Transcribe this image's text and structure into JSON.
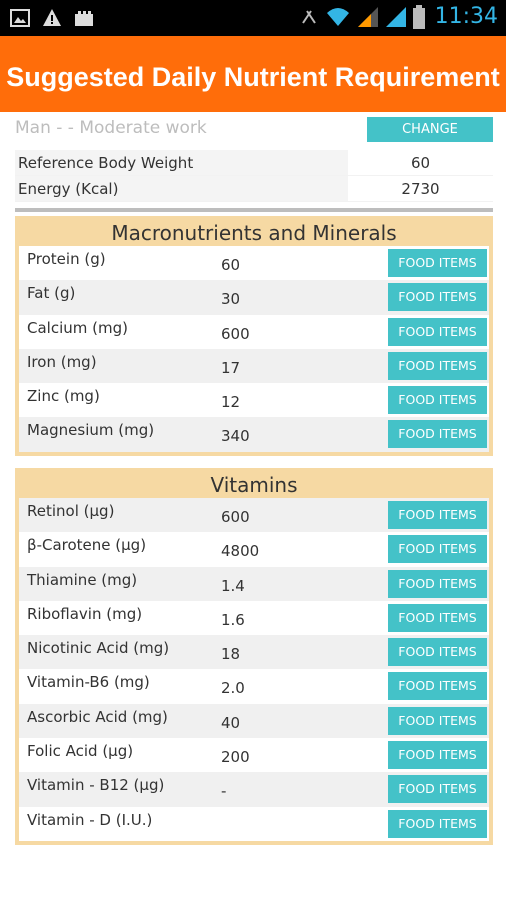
{
  "status_bar": {
    "time": "11:34",
    "left_icons": [
      "image-icon",
      "warning-icon",
      "gift-icon"
    ],
    "right_icons": [
      "no-sync-icon",
      "wifi-icon",
      "signal-icon",
      "signal-icon",
      "battery-icon"
    ]
  },
  "header": {
    "title": "Suggested Daily Nutrient Requirement",
    "background": "#ff6d0a"
  },
  "profile": {
    "text": "Man -  - Moderate work",
    "change_label": "CHANGE"
  },
  "reference": [
    {
      "label": "Reference Body Weight",
      "value": "60"
    },
    {
      "label": "Energy (Kcal)",
      "value": "2730"
    }
  ],
  "macros": {
    "title": "Macronutrients and Minerals",
    "rows": [
      {
        "label": "Protein (g)",
        "value": "60",
        "button": "FOOD ITEMS"
      },
      {
        "label": "Fat (g)",
        "value": "30",
        "button": "FOOD ITEMS"
      },
      {
        "label": "Calcium (mg)",
        "value": "600",
        "button": "FOOD ITEMS"
      },
      {
        "label": "Iron (mg)",
        "value": "17",
        "button": "FOOD ITEMS"
      },
      {
        "label": "Zinc (mg)",
        "value": "12",
        "button": "FOOD ITEMS"
      },
      {
        "label": "Magnesium (mg)",
        "value": "340",
        "button": "FOOD ITEMS"
      }
    ]
  },
  "vitamins": {
    "title": "Vitamins",
    "rows": [
      {
        "label": "Retinol (µg)",
        "value": "600",
        "button": "FOOD ITEMS"
      },
      {
        "label": "β-Carotene (µg)",
        "value": "4800",
        "button": "FOOD ITEMS"
      },
      {
        "label": "Thiamine (mg)",
        "value": "1.4",
        "button": "FOOD ITEMS"
      },
      {
        "label": "Riboflavin (mg)",
        "value": "1.6",
        "button": "FOOD ITEMS"
      },
      {
        "label": "Nicotinic Acid (mg)",
        "value": "18",
        "button": "FOOD ITEMS"
      },
      {
        "label": "Vitamin-B6 (mg)",
        "value": "2.0",
        "button": "FOOD ITEMS"
      },
      {
        "label": "Ascorbic Acid (mg)",
        "value": "40",
        "button": "FOOD ITEMS"
      },
      {
        "label": "Folic Acid (µg)",
        "value": "200",
        "button": "FOOD ITEMS"
      },
      {
        "label": "Vitamin - B12 (µg)",
        "value": "-",
        "button": "FOOD ITEMS"
      },
      {
        "label": "Vitamin - D (I.U.)",
        "value": "",
        "button": "FOOD ITEMS"
      }
    ]
  },
  "colors": {
    "accent_button": "#44c2c8",
    "section_bg": "#f6d9a3",
    "header_bg": "#ff6d0a"
  }
}
